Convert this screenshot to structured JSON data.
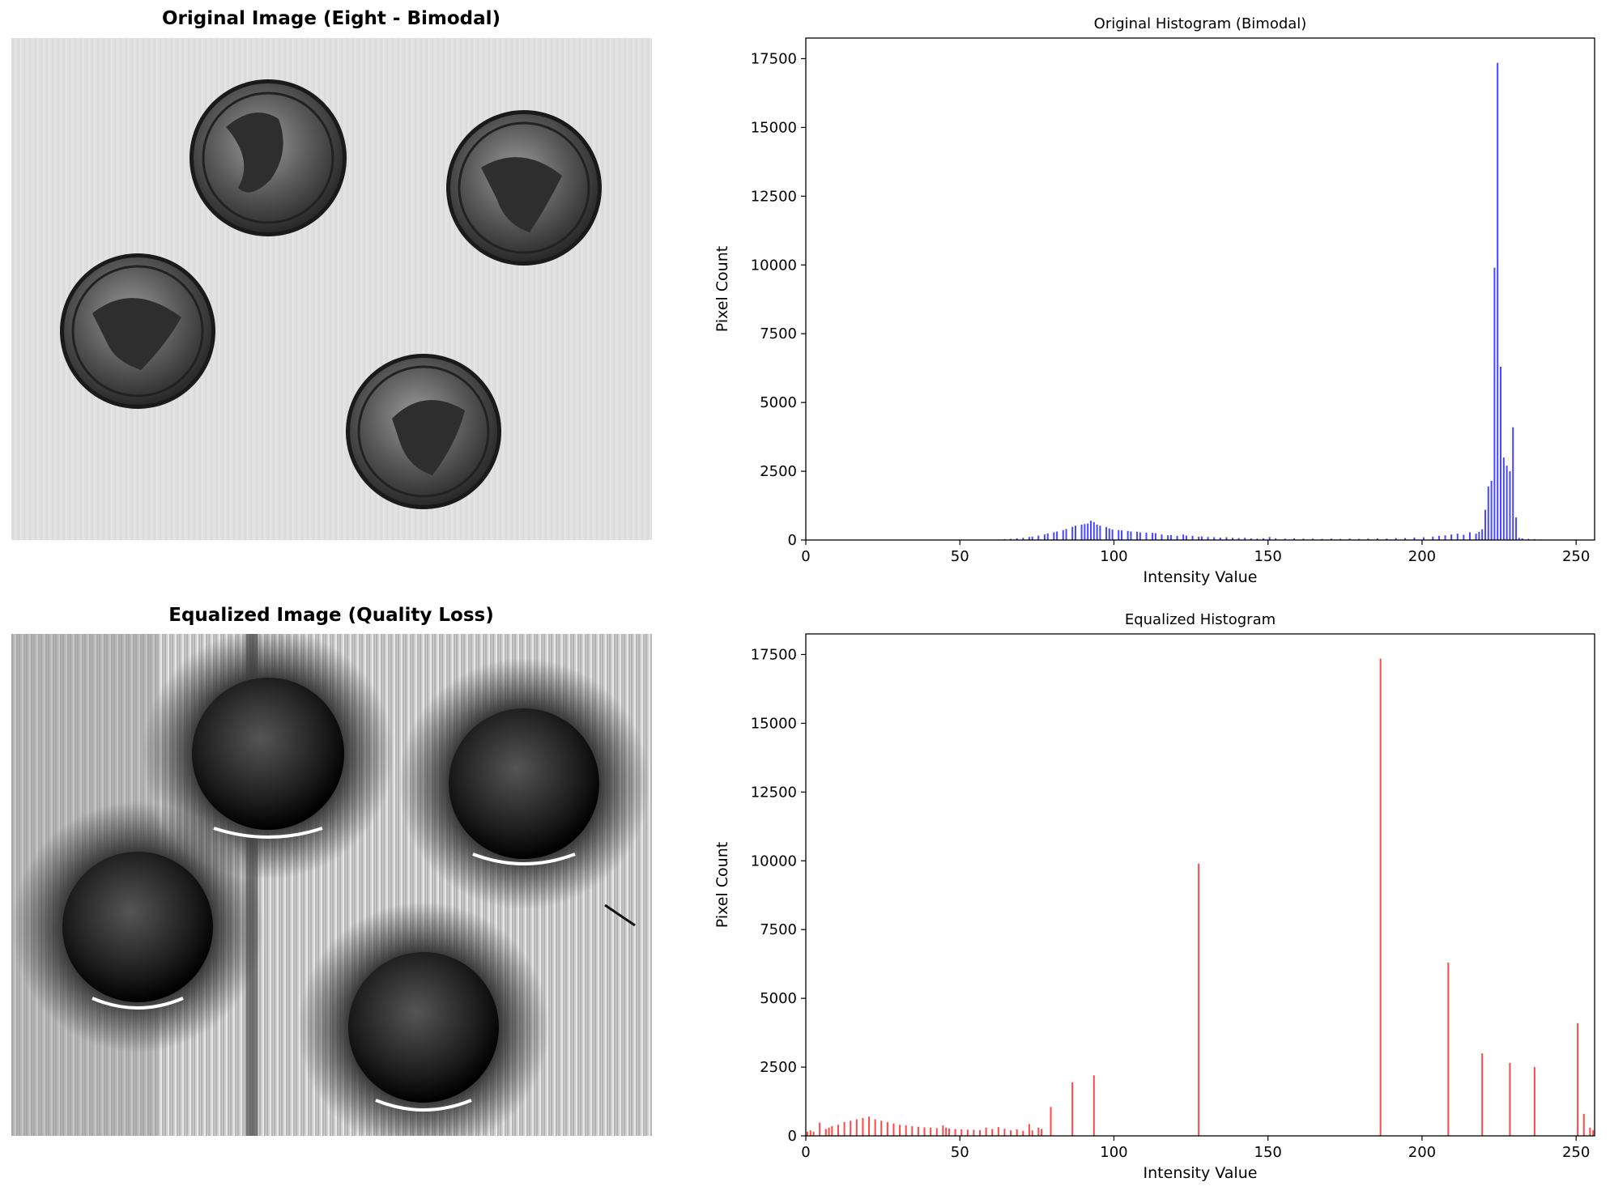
{
  "figure": {
    "top_left_title": "Original Image (Eight - Bimodal)",
    "bottom_left_title": "Equalized Image (Quality Loss)"
  },
  "chart_data": [
    {
      "type": "bar",
      "title": "Original Histogram (Bimodal)",
      "xlabel": "Intensity Value",
      "ylabel": "Pixel Count",
      "xlim": [
        0,
        256
      ],
      "ylim": [
        0,
        18250
      ],
      "xticks": [
        0,
        50,
        100,
        150,
        200,
        250
      ],
      "yticks": [
        0,
        2500,
        5000,
        7500,
        10000,
        12500,
        15000,
        17500
      ],
      "color": "#0000ff",
      "bars": [
        [
          62,
          20
        ],
        [
          64,
          30
        ],
        [
          66,
          40
        ],
        [
          68,
          60
        ],
        [
          70,
          80
        ],
        [
          72,
          110
        ],
        [
          73,
          120
        ],
        [
          75,
          160
        ],
        [
          77,
          200
        ],
        [
          78,
          240
        ],
        [
          80,
          280
        ],
        [
          81,
          310
        ],
        [
          83,
          360
        ],
        [
          84,
          400
        ],
        [
          86,
          480
        ],
        [
          87,
          520
        ],
        [
          89,
          560
        ],
        [
          90,
          580
        ],
        [
          91,
          600
        ],
        [
          92,
          700
        ],
        [
          93,
          650
        ],
        [
          94,
          560
        ],
        [
          95,
          520
        ],
        [
          97,
          470
        ],
        [
          98,
          420
        ],
        [
          99,
          380
        ],
        [
          101,
          360
        ],
        [
          102,
          350
        ],
        [
          104,
          330
        ],
        [
          105,
          310
        ],
        [
          107,
          300
        ],
        [
          108,
          280
        ],
        [
          110,
          270
        ],
        [
          112,
          260
        ],
        [
          113,
          250
        ],
        [
          115,
          200
        ],
        [
          117,
          170
        ],
        [
          118,
          180
        ],
        [
          120,
          150
        ],
        [
          122,
          200
        ],
        [
          123,
          160
        ],
        [
          125,
          150
        ],
        [
          127,
          120
        ],
        [
          128,
          130
        ],
        [
          130,
          110
        ],
        [
          132,
          100
        ],
        [
          134,
          90
        ],
        [
          136,
          100
        ],
        [
          138,
          80
        ],
        [
          140,
          70
        ],
        [
          142,
          80
        ],
        [
          144,
          60
        ],
        [
          146,
          50
        ],
        [
          148,
          60
        ],
        [
          150,
          110
        ],
        [
          152,
          60
        ],
        [
          155,
          50
        ],
        [
          158,
          60
        ],
        [
          161,
          50
        ],
        [
          164,
          50
        ],
        [
          167,
          40
        ],
        [
          170,
          50
        ],
        [
          173,
          40
        ],
        [
          176,
          50
        ],
        [
          179,
          40
        ],
        [
          182,
          50
        ],
        [
          185,
          60
        ],
        [
          188,
          50
        ],
        [
          191,
          70
        ],
        [
          194,
          70
        ],
        [
          197,
          90
        ],
        [
          200,
          100
        ],
        [
          203,
          120
        ],
        [
          205,
          150
        ],
        [
          207,
          170
        ],
        [
          209,
          200
        ],
        [
          211,
          230
        ],
        [
          213,
          190
        ],
        [
          215,
          280
        ],
        [
          217,
          230
        ],
        [
          218,
          300
        ],
        [
          219,
          390
        ],
        [
          220,
          1100
        ],
        [
          221,
          1950
        ],
        [
          222,
          2150
        ],
        [
          223,
          9900
        ],
        [
          224,
          17350
        ],
        [
          225,
          6300
        ],
        [
          226,
          3000
        ],
        [
          227,
          2700
        ],
        [
          228,
          2500
        ],
        [
          229,
          4100
        ],
        [
          230,
          820
        ],
        [
          231,
          80
        ],
        [
          232,
          60
        ],
        [
          234,
          40
        ],
        [
          236,
          30
        ],
        [
          238,
          20
        ],
        [
          241,
          10
        ]
      ]
    },
    {
      "type": "bar",
      "title": "Equalized Histogram",
      "xlabel": "Intensity Value",
      "ylabel": "Pixel Count",
      "xlim": [
        0,
        256
      ],
      "ylim": [
        0,
        18250
      ],
      "xticks": [
        0,
        50,
        100,
        150,
        200,
        250
      ],
      "yticks": [
        0,
        2500,
        5000,
        7500,
        10000,
        12500,
        15000,
        17500
      ],
      "color": "#ff0000",
      "bars": [
        [
          0,
          150
        ],
        [
          1,
          200
        ],
        [
          2,
          150
        ],
        [
          4,
          480
        ],
        [
          6,
          250
        ],
        [
          7,
          300
        ],
        [
          8,
          350
        ],
        [
          10,
          400
        ],
        [
          12,
          500
        ],
        [
          14,
          550
        ],
        [
          16,
          600
        ],
        [
          18,
          650
        ],
        [
          20,
          700
        ],
        [
          22,
          600
        ],
        [
          24,
          550
        ],
        [
          26,
          500
        ],
        [
          28,
          450
        ],
        [
          30,
          400
        ],
        [
          32,
          380
        ],
        [
          34,
          350
        ],
        [
          36,
          330
        ],
        [
          38,
          310
        ],
        [
          40,
          300
        ],
        [
          42,
          280
        ],
        [
          44,
          380
        ],
        [
          45,
          300
        ],
        [
          46,
          270
        ],
        [
          48,
          250
        ],
        [
          50,
          240
        ],
        [
          52,
          230
        ],
        [
          54,
          220
        ],
        [
          56,
          210
        ],
        [
          58,
          300
        ],
        [
          60,
          250
        ],
        [
          62,
          320
        ],
        [
          64,
          260
        ],
        [
          66,
          200
        ],
        [
          68,
          240
        ],
        [
          70,
          180
        ],
        [
          72,
          430
        ],
        [
          73,
          200
        ],
        [
          75,
          300
        ],
        [
          76,
          250
        ],
        [
          79,
          1050
        ],
        [
          86,
          1950
        ],
        [
          93,
          2200
        ],
        [
          127,
          9900
        ],
        [
          186,
          17350
        ],
        [
          208,
          6300
        ],
        [
          219,
          3000
        ],
        [
          228,
          2650
        ],
        [
          236,
          2500
        ],
        [
          250,
          4100
        ],
        [
          252,
          800
        ],
        [
          254,
          300
        ],
        [
          255,
          200
        ]
      ]
    }
  ]
}
